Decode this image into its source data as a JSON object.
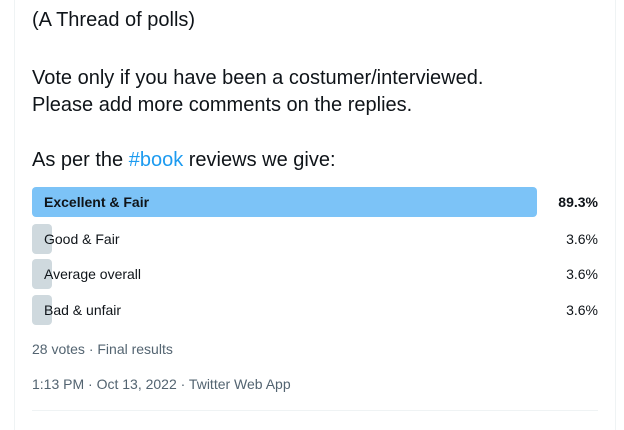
{
  "tweet": {
    "line1": "(A Thread of polls)",
    "line2": "Vote only if you have been a costumer/interviewed.",
    "line3": "Please add more comments on the replies.",
    "line4_prefix": "As per the ",
    "hashtag": "#book",
    "line4_suffix": " reviews we give:"
  },
  "poll": {
    "options": [
      {
        "label": "Excellent & Fair",
        "percent_text": "89.3%",
        "percent": 89.3,
        "winner": true
      },
      {
        "label": "Good & Fair",
        "percent_text": "3.6%",
        "percent": 3.6,
        "winner": false
      },
      {
        "label": "Average overall",
        "percent_text": "3.6%",
        "percent": 3.6,
        "winner": false
      },
      {
        "label": "Bad & unfair",
        "percent_text": "3.6%",
        "percent": 3.6,
        "winner": false
      }
    ],
    "summary": "28 votes · Final results"
  },
  "timestamp": "1:13 PM · Oct 13, 2022 · Twitter Web App",
  "colors": {
    "winner_bar": "#7cc3f7",
    "other_bar": "#cfd9de",
    "hashtag": "#1d9bf0"
  }
}
